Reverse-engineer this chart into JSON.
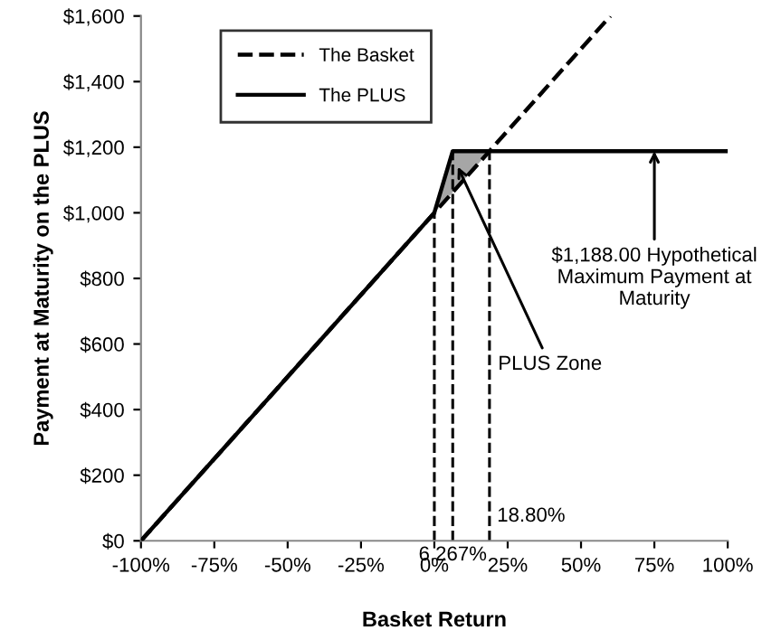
{
  "chart_data": {
    "type": "line",
    "xlabel": "Basket Return",
    "ylabel": "Payment at Maturity on the PLUS",
    "xlim": [
      -100,
      100
    ],
    "ylim": [
      0,
      1600
    ],
    "xticks": [
      {
        "value": -100,
        "label": "-100%"
      },
      {
        "value": -75,
        "label": "-75%"
      },
      {
        "value": -50,
        "label": "-50%"
      },
      {
        "value": -25,
        "label": "-25%"
      },
      {
        "value": 0,
        "label": "0%"
      },
      {
        "value": 25,
        "label": "25%"
      },
      {
        "value": 50,
        "label": "50%"
      },
      {
        "value": 75,
        "label": "75%"
      },
      {
        "value": 100,
        "label": "100%"
      }
    ],
    "yticks": [
      {
        "value": 0,
        "label": "$0"
      },
      {
        "value": 200,
        "label": "$200"
      },
      {
        "value": 400,
        "label": "$400"
      },
      {
        "value": 600,
        "label": "$600"
      },
      {
        "value": 800,
        "label": "$800"
      },
      {
        "value": 1000,
        "label": "$1,000"
      },
      {
        "value": 1200,
        "label": "$1,200"
      },
      {
        "value": 1400,
        "label": "$1,400"
      },
      {
        "value": 1600,
        "label": "$1,600"
      }
    ],
    "series": [
      {
        "name": "The Basket",
        "line_style": "dashed",
        "color": "#000000",
        "x": [
          -100,
          60
        ],
        "values": [
          0,
          1600
        ]
      },
      {
        "name": "The PLUS",
        "line_style": "solid",
        "color": "#000000",
        "x": [
          -100,
          0,
          6.267,
          100
        ],
        "values": [
          0,
          1000,
          1188,
          1188
        ]
      },
      {
        "type": "area",
        "color": "#a6a6a6",
        "x": [
          0,
          6.267,
          18.8
        ],
        "values": [
          1000,
          1188,
          1188
        ]
      }
    ],
    "ref_lines": [
      {
        "axis": "x",
        "value": 0,
        "label": null,
        "line_style": "dashed",
        "color": "#000000"
      },
      {
        "axis": "x",
        "value": 6.267,
        "label": "6.267%",
        "line_style": "dashed",
        "color": "#000000"
      },
      {
        "axis": "x",
        "value": 18.8,
        "label": "18.80%",
        "line_style": "dashed",
        "color": "#000000"
      }
    ],
    "annotations": [
      {
        "text": "PLUS Zone",
        "x": 8,
        "y": 1140
      },
      {
        "text": "$1,188.00 Hypothetical\nMaximum Payment at\nMaturity",
        "x": 75,
        "y": 1188
      }
    ],
    "legend": "top left",
    "grid": false
  }
}
